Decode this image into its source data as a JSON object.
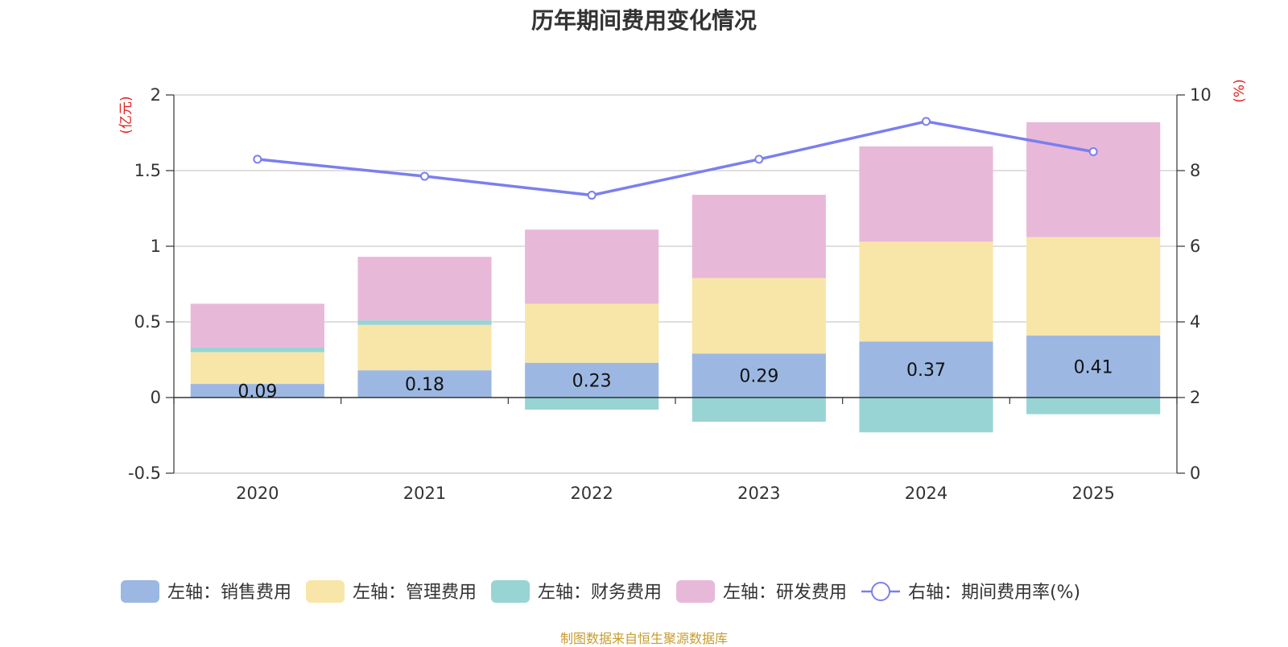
{
  "title": "历年期间费用变化情况",
  "source": "制图数据来自恒生聚源数据库",
  "chart_data": {
    "type": "bar",
    "stacked": true,
    "categories": [
      "2020",
      "2021",
      "2022",
      "2023",
      "2024",
      "2025"
    ],
    "left_axis": {
      "unit": "(亿元)",
      "ylim": [
        -0.5,
        2
      ],
      "ticks": [
        "-0.5",
        "0",
        "0.5",
        "1",
        "1.5",
        "2"
      ]
    },
    "right_axis": {
      "unit": "(%)",
      "ylim": [
        0,
        10
      ],
      "ticks": [
        "0",
        "2",
        "4",
        "6",
        "8",
        "10"
      ]
    },
    "series": [
      {
        "name": "左轴：销售费用",
        "axis": "left",
        "color": "#9cb8e2",
        "values": [
          0.09,
          0.18,
          0.23,
          0.29,
          0.37,
          0.41
        ],
        "labels": [
          "0.09",
          "0.18",
          "0.23",
          "0.29",
          "0.37",
          "0.41"
        ]
      },
      {
        "name": "左轴：管理费用",
        "axis": "left",
        "color": "#f8e6a8",
        "values": [
          0.21,
          0.3,
          0.39,
          0.5,
          0.66,
          0.65
        ]
      },
      {
        "name": "左轴：财务费用",
        "axis": "left",
        "color": "#98d4d4",
        "values": [
          0.03,
          0.03,
          -0.08,
          -0.16,
          -0.23,
          -0.11
        ]
      },
      {
        "name": "左轴：研发费用",
        "axis": "left",
        "color": "#e8b8d9",
        "values": [
          0.29,
          0.42,
          0.49,
          0.55,
          0.63,
          0.76
        ]
      },
      {
        "name": "右轴：期间费用率(%)",
        "axis": "right",
        "type": "line",
        "color": "#7b7fee",
        "values": [
          8.3,
          7.85,
          7.35,
          8.3,
          9.3,
          8.5
        ]
      }
    ]
  }
}
